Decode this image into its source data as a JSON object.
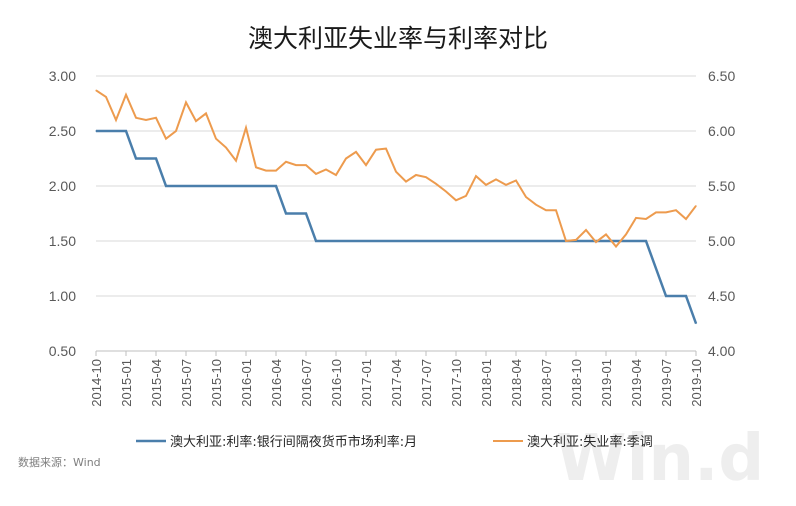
{
  "chart_data": {
    "type": "line",
    "title": "澳大利亚失业率与利率对比",
    "source": "数据来源：Wind",
    "watermark": "Win.d",
    "grid": true,
    "legend_position": "bottom",
    "y_left": {
      "ylim": [
        0.5,
        3.0
      ],
      "ticks": [
        "0.50",
        "1.00",
        "1.50",
        "2.00",
        "2.50",
        "3.00"
      ]
    },
    "y_right": {
      "ylim": [
        4.0,
        6.5
      ],
      "ticks": [
        "4.00",
        "4.50",
        "5.00",
        "5.50",
        "6.00",
        "6.50"
      ]
    },
    "x_tick_labels": [
      "2014-10",
      "2015-01",
      "2015-04",
      "2015-07",
      "2015-10",
      "2016-01",
      "2016-04",
      "2016-07",
      "2016-10",
      "2017-01",
      "2017-04",
      "2017-07",
      "2017-10",
      "2018-01",
      "2018-04",
      "2018-07",
      "2018-10",
      "2019-01",
      "2019-04",
      "2019-07",
      "2019-10"
    ],
    "x_range": [
      "2014-10",
      "2019-10"
    ],
    "series": [
      {
        "name": "澳大利亚:利率:银行间隔夜货币市场利率:月",
        "axis": "left",
        "color": "#4a7eab",
        "points": [
          [
            "2014-10",
            2.5
          ],
          [
            "2015-01",
            2.5
          ],
          [
            "2015-02",
            2.25
          ],
          [
            "2015-04",
            2.25
          ],
          [
            "2015-05",
            2.0
          ],
          [
            "2016-04",
            2.0
          ],
          [
            "2016-05",
            1.75
          ],
          [
            "2016-07",
            1.75
          ],
          [
            "2016-08",
            1.5
          ],
          [
            "2019-05",
            1.5
          ],
          [
            "2019-06",
            1.25
          ],
          [
            "2019-07",
            1.0
          ],
          [
            "2019-09",
            1.0
          ],
          [
            "2019-10",
            0.75
          ]
        ]
      },
      {
        "name": "澳大利亚:失业率:季调",
        "axis": "right",
        "color": "#ed9b4e",
        "points": [
          [
            "2014-10",
            6.37
          ],
          [
            "2014-11",
            6.31
          ],
          [
            "2014-12",
            6.1
          ],
          [
            "2015-01",
            6.33
          ],
          [
            "2015-02",
            6.12
          ],
          [
            "2015-03",
            6.1
          ],
          [
            "2015-04",
            6.12
          ],
          [
            "2015-05",
            5.93
          ],
          [
            "2015-06",
            6.0
          ],
          [
            "2015-07",
            6.26
          ],
          [
            "2015-08",
            6.09
          ],
          [
            "2015-09",
            6.16
          ],
          [
            "2015-10",
            5.93
          ],
          [
            "2015-11",
            5.85
          ],
          [
            "2015-12",
            5.73
          ],
          [
            "2016-01",
            6.03
          ],
          [
            "2016-02",
            5.67
          ],
          [
            "2016-03",
            5.64
          ],
          [
            "2016-04",
            5.64
          ],
          [
            "2016-05",
            5.72
          ],
          [
            "2016-06",
            5.69
          ],
          [
            "2016-07",
            5.69
          ],
          [
            "2016-08",
            5.61
          ],
          [
            "2016-09",
            5.65
          ],
          [
            "2016-10",
            5.6
          ],
          [
            "2016-11",
            5.75
          ],
          [
            "2016-12",
            5.81
          ],
          [
            "2017-01",
            5.69
          ],
          [
            "2017-02",
            5.83
          ],
          [
            "2017-03",
            5.84
          ],
          [
            "2017-04",
            5.63
          ],
          [
            "2017-05",
            5.54
          ],
          [
            "2017-06",
            5.6
          ],
          [
            "2017-07",
            5.58
          ],
          [
            "2017-08",
            5.52
          ],
          [
            "2017-09",
            5.45
          ],
          [
            "2017-10",
            5.37
          ],
          [
            "2017-11",
            5.41
          ],
          [
            "2017-12",
            5.59
          ],
          [
            "2018-01",
            5.51
          ],
          [
            "2018-02",
            5.56
          ],
          [
            "2018-03",
            5.51
          ],
          [
            "2018-04",
            5.55
          ],
          [
            "2018-05",
            5.4
          ],
          [
            "2018-06",
            5.33
          ],
          [
            "2018-07",
            5.28
          ],
          [
            "2018-08",
            5.28
          ],
          [
            "2018-09",
            5.0
          ],
          [
            "2018-10",
            5.01
          ],
          [
            "2018-11",
            5.1
          ],
          [
            "2018-12",
            4.99
          ],
          [
            "2019-01",
            5.06
          ],
          [
            "2019-02",
            4.95
          ],
          [
            "2019-03",
            5.06
          ],
          [
            "2019-04",
            5.21
          ],
          [
            "2019-05",
            5.2
          ],
          [
            "2019-06",
            5.26
          ],
          [
            "2019-07",
            5.26
          ],
          [
            "2019-08",
            5.28
          ],
          [
            "2019-09",
            5.2
          ],
          [
            "2019-10",
            5.32
          ]
        ]
      }
    ]
  }
}
